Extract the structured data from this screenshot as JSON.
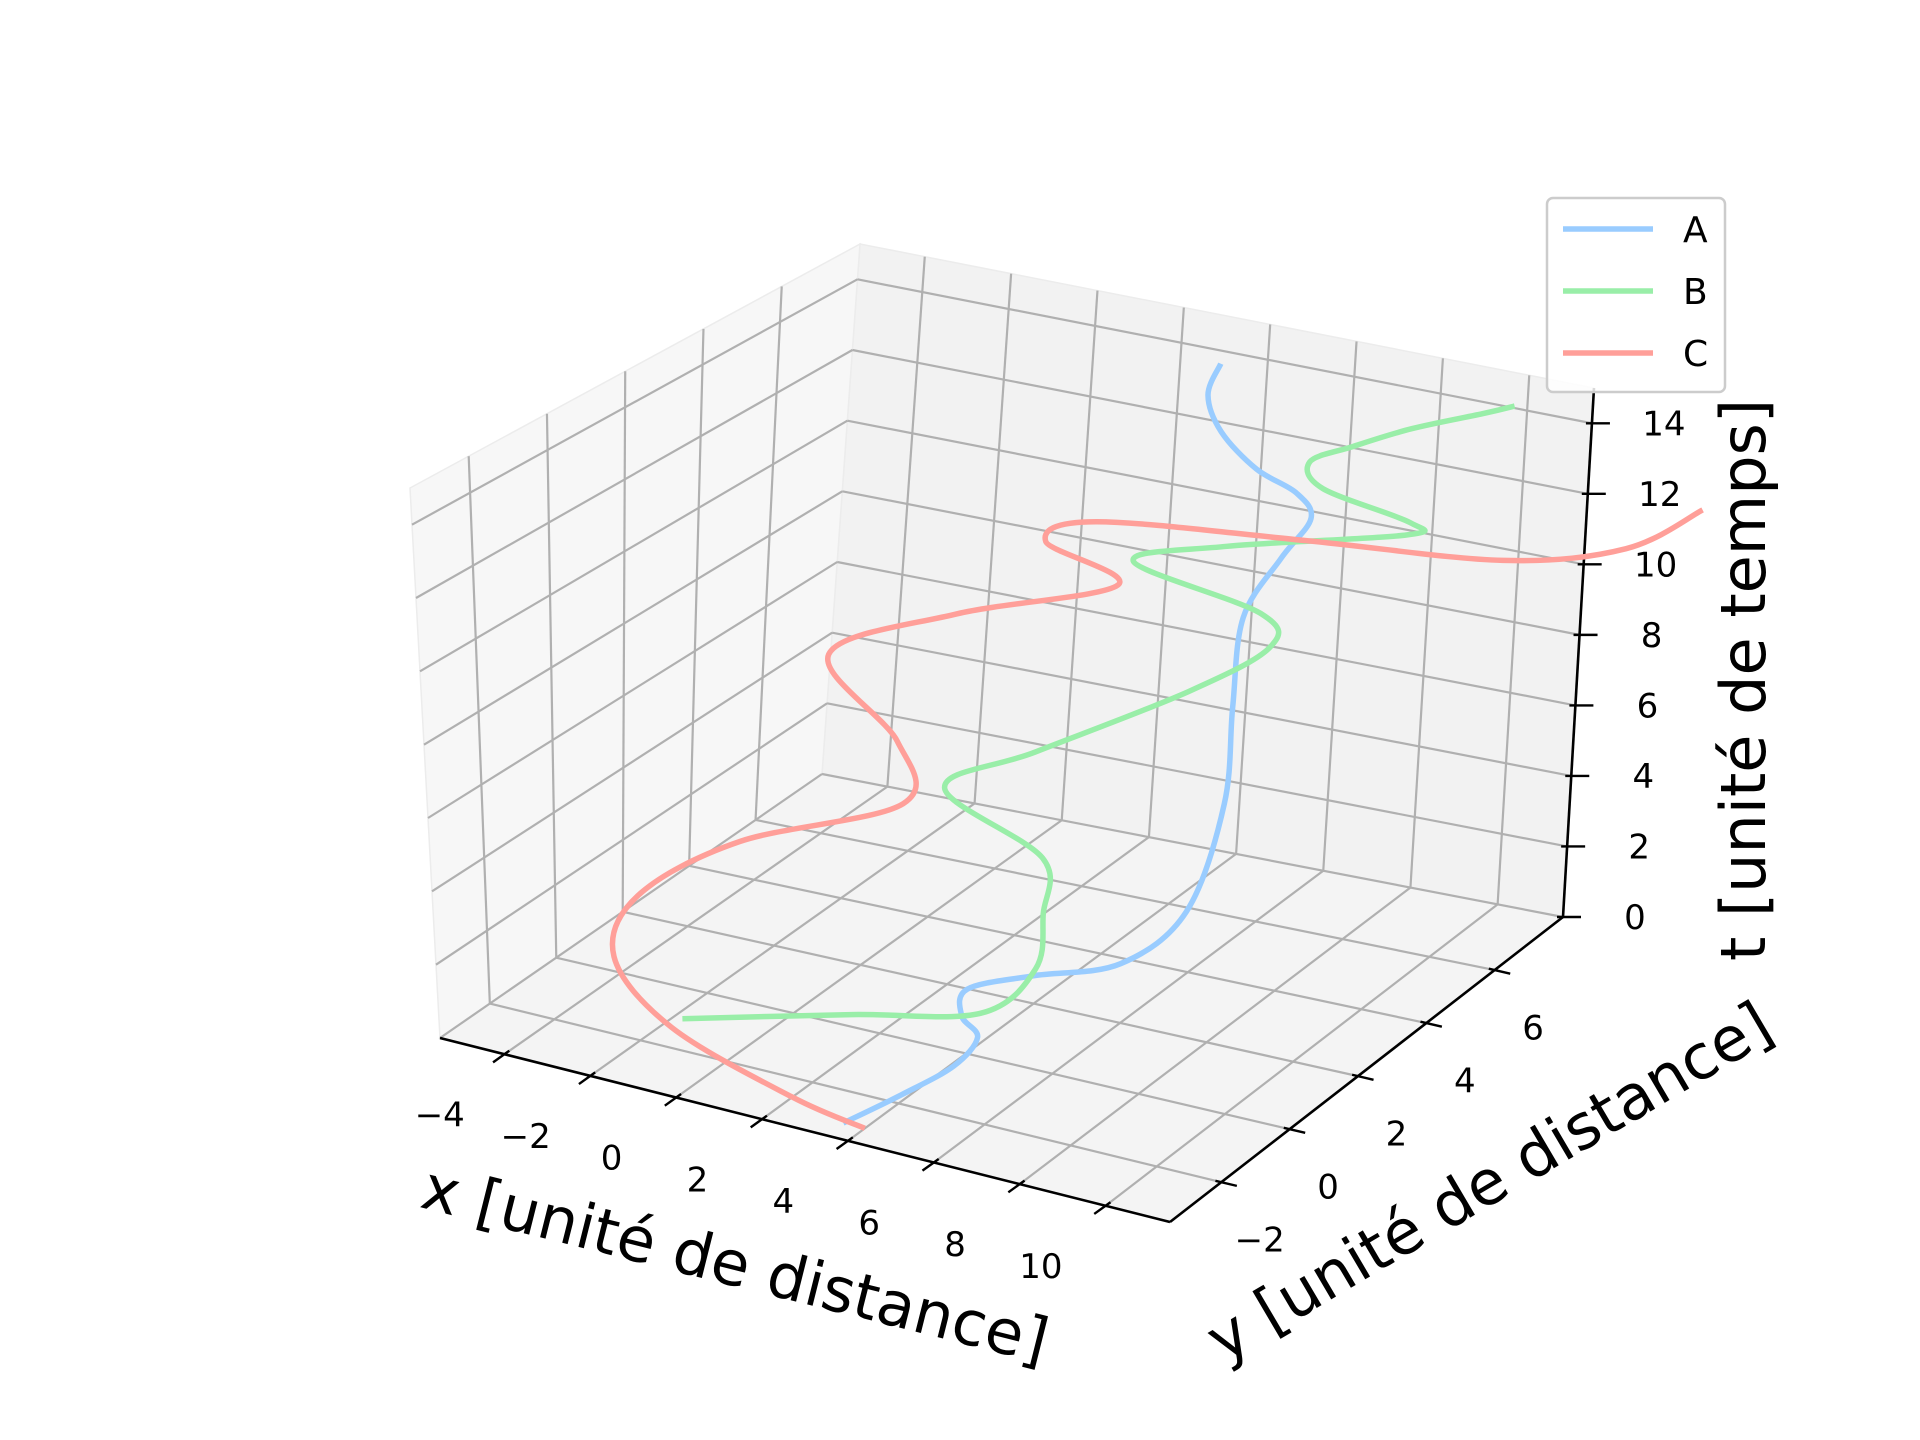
{
  "chart_data": {
    "type": "line3d",
    "xlabel": "x [unité de distance]",
    "ylabel": "y [unité de distance]",
    "zlabel": "t [unité de temps]",
    "xlim": [
      -5.5,
      11.5
    ],
    "ylim": [
      -3.5,
      8
    ],
    "zlim": [
      0,
      15
    ],
    "xticks": [
      -4,
      -2,
      0,
      2,
      4,
      6,
      8,
      10
    ],
    "xtick_labels": [
      "−4",
      "−2",
      "0",
      "2",
      "4",
      "6",
      "8",
      "10"
    ],
    "yticks": [
      -2,
      0,
      2,
      4,
      6
    ],
    "ytick_labels": [
      "−2",
      "0",
      "2",
      "4",
      "6"
    ],
    "zticks": [
      0,
      2,
      4,
      6,
      8,
      10,
      12,
      14
    ],
    "ztick_labels": [
      "0",
      "2",
      "4",
      "6",
      "8",
      "10",
      "12",
      "14"
    ],
    "grid": true,
    "legend": {
      "position": "top-right",
      "entries": [
        "A",
        "B",
        "C"
      ]
    },
    "series": [
      {
        "name": "A",
        "color": "#99ccff",
        "points": [
          [
            3.5,
            -3.0,
            0.0
          ],
          [
            4.4,
            -2.4,
            0.6
          ],
          [
            5.0,
            -1.6,
            1.0
          ],
          [
            5.0,
            -0.9,
            1.3
          ],
          [
            4.4,
            -0.6,
            1.5
          ],
          [
            4.3,
            -0.3,
            2.0
          ],
          [
            5.6,
            0.0,
            2.5
          ],
          [
            7.3,
            0.4,
            3.0
          ],
          [
            8.1,
            1.3,
            4.0
          ],
          [
            7.9,
            2.6,
            6.0
          ],
          [
            7.4,
            3.4,
            8.0
          ],
          [
            7.1,
            4.0,
            10.0
          ],
          [
            7.6,
            4.4,
            11.5
          ],
          [
            8.0,
            4.7,
            12.5
          ],
          [
            7.3,
            5.1,
            12.8
          ],
          [
            6.1,
            5.4,
            13.0
          ],
          [
            5.0,
            5.7,
            13.6
          ],
          [
            4.4,
            6.0,
            14.3
          ],
          [
            4.4,
            6.3,
            15.0
          ]
        ]
      },
      {
        "name": "B",
        "color": "#99eea8",
        "points": [
          [
            -1.8,
            -1.0,
            0.0
          ],
          [
            1.5,
            -0.2,
            0.5
          ],
          [
            4.2,
            0.2,
            1.0
          ],
          [
            5.0,
            0.8,
            2.0
          ],
          [
            4.7,
            1.4,
            3.0
          ],
          [
            4.2,
            2.0,
            4.0
          ],
          [
            1.6,
            2.4,
            5.0
          ],
          [
            3.2,
            3.0,
            6.0
          ],
          [
            6.2,
            3.6,
            8.0
          ],
          [
            7.9,
            3.8,
            9.5
          ],
          [
            7.5,
            4.0,
            10.2
          ],
          [
            4.2,
            4.4,
            10.6
          ],
          [
            6.0,
            4.8,
            11.2
          ],
          [
            9.6,
            5.4,
            12.0
          ],
          [
            9.5,
            5.6,
            12.2
          ],
          [
            7.3,
            5.8,
            12.5
          ],
          [
            6.8,
            6.0,
            13.0
          ],
          [
            7.6,
            6.2,
            13.5
          ],
          [
            8.6,
            6.6,
            14.0
          ],
          [
            9.9,
            7.0,
            14.5
          ],
          [
            10.4,
            7.2,
            14.7
          ]
        ]
      },
      {
        "name": "C",
        "color": "#ff9f99",
        "points": [
          [
            4.0,
            -3.0,
            0.0
          ],
          [
            2.0,
            -2.6,
            0.0
          ],
          [
            -1.5,
            -1.7,
            0.3
          ],
          [
            -3.6,
            -0.7,
            1.0
          ],
          [
            -3.8,
            0.3,
            2.0
          ],
          [
            -2.0,
            1.0,
            3.5
          ],
          [
            1.3,
            1.6,
            5.0
          ],
          [
            0.5,
            2.4,
            6.0
          ],
          [
            -1.6,
            3.0,
            7.5
          ],
          [
            1.0,
            3.4,
            9.0
          ],
          [
            4.2,
            4.0,
            10.2
          ],
          [
            2.0,
            4.6,
            10.5
          ],
          [
            2.8,
            5.0,
            11.0
          ],
          [
            7.3,
            5.4,
            11.3
          ],
          [
            11.5,
            5.8,
            11.5
          ],
          [
            13.8,
            6.4,
            12.0
          ],
          [
            15.0,
            7.0,
            13.0
          ]
        ]
      }
    ]
  }
}
